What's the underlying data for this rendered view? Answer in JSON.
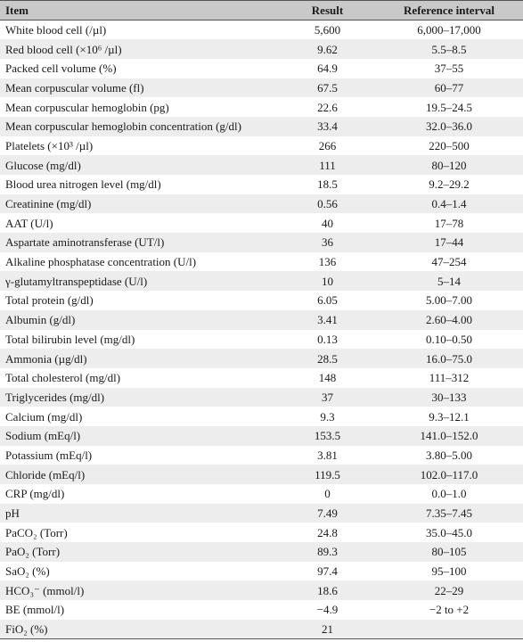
{
  "table": {
    "headers": {
      "item": "Item",
      "result": "Result",
      "reference": "Reference interval"
    },
    "rows": [
      {
        "item": "White blood cell (/µl)",
        "result": "5,600",
        "reference": "6,000–17,000"
      },
      {
        "item": "Red blood cell (×10⁶ /µl)",
        "result": "9.62",
        "reference": "5.5–8.5"
      },
      {
        "item": "Packed cell volume (%)",
        "result": "64.9",
        "reference": "37–55"
      },
      {
        "item": "Mean corpuscular volume (fl)",
        "result": "67.5",
        "reference": "60–77"
      },
      {
        "item": "Mean corpuscular hemoglobin (pg)",
        "result": "22.6",
        "reference": "19.5–24.5"
      },
      {
        "item": "Mean corpuscular hemoglobin concentration (g/dl)",
        "result": "33.4",
        "reference": "32.0–36.0"
      },
      {
        "item": "Platelets (×10³ /µl)",
        "result": "266",
        "reference": "220–500"
      },
      {
        "item": "Glucose (mg/dl)",
        "result": "111",
        "reference": "80–120"
      },
      {
        "item": "Blood urea nitrogen level (mg/dl)",
        "result": "18.5",
        "reference": "9.2–29.2"
      },
      {
        "item": "Creatinine (mg/dl)",
        "result": "0.56",
        "reference": "0.4–1.4"
      },
      {
        "item": "AAT (U/l)",
        "result": "40",
        "reference": "17–78"
      },
      {
        "item": "Aspartate aminotransferase (UT/l)",
        "result": "36",
        "reference": "17–44"
      },
      {
        "item": "Alkaline phosphatase concentration (U/l)",
        "result": "136",
        "reference": "47–254"
      },
      {
        "item": "γ-glutamyltranspeptidase (U/l)",
        "result": "10",
        "reference": "5–14"
      },
      {
        "item": "Total protein (g/dl)",
        "result": "6.05",
        "reference": "5.00–7.00"
      },
      {
        "item": "Albumin (g/dl)",
        "result": "3.41",
        "reference": "2.60–4.00"
      },
      {
        "item": "Total bilirubin level (mg/dl)",
        "result": "0.13",
        "reference": "0.10–0.50"
      },
      {
        "item": "Ammonia (µg/dl)",
        "result": "28.5",
        "reference": "16.0–75.0"
      },
      {
        "item": "Total cholesterol (mg/dl)",
        "result": "148",
        "reference": "111–312"
      },
      {
        "item": "Triglycerides (mg/dl)",
        "result": "37",
        "reference": "30–133"
      },
      {
        "item": "Calcium (mg/dl)",
        "result": "9.3",
        "reference": "9.3–12.1"
      },
      {
        "item": "Sodium (mEq/l)",
        "result": "153.5",
        "reference": "141.0–152.0"
      },
      {
        "item": "Potassium (mEq/l)",
        "result": "3.81",
        "reference": "3.80–5.00"
      },
      {
        "item": "Chloride (mEq/l)",
        "result": "119.5",
        "reference": "102.0–117.0"
      },
      {
        "item": "CRP (mg/dl)",
        "result": "0",
        "reference": "0.0–1.0"
      },
      {
        "item": "pH",
        "result": "7.49",
        "reference": "7.35–7.45"
      },
      {
        "item": "PaCO₂ (Torr)",
        "result": "24.8",
        "reference": "35.0–45.0"
      },
      {
        "item": "PaO₂ (Torr)",
        "result": "89.3",
        "reference": "80–105"
      },
      {
        "item": "SaO₂ (%)",
        "result": "97.4",
        "reference": "95–100"
      },
      {
        "item": "HCO₃⁻ (mmol/l)",
        "result": "18.6",
        "reference": "22–29"
      },
      {
        "item": "BE (mmol/l)",
        "result": "−4.9",
        "reference": "−2 to +2"
      },
      {
        "item": "FiO₂ (%)",
        "result": "21",
        "reference": ""
      }
    ]
  }
}
